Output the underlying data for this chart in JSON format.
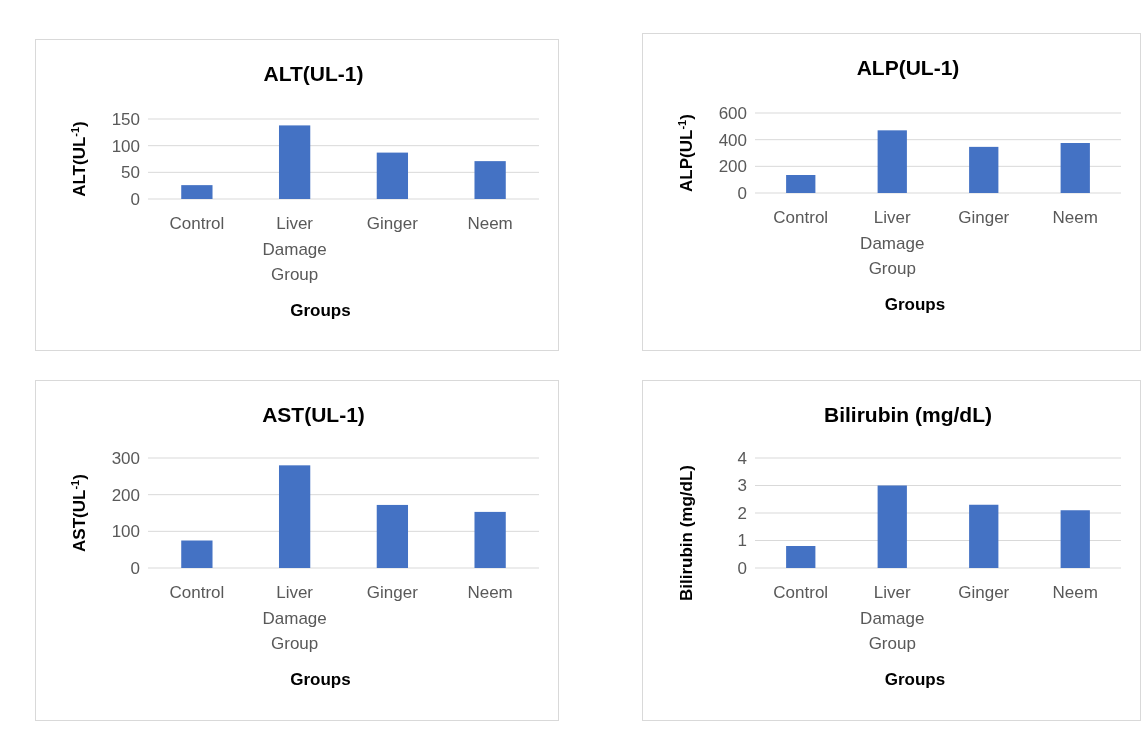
{
  "chart_data": [
    {
      "type": "bar",
      "title": "ALT(UL-1)",
      "xlabel": "Groups",
      "ylabel": "ALT(UL$^{-1}$)",
      "categories": [
        "Control",
        "Liver Damage Group",
        "Ginger",
        "Neem"
      ],
      "values": [
        26,
        138,
        87,
        71
      ],
      "color": "#4472c4",
      "ylim": [
        0,
        150
      ],
      "yticks": [
        0,
        50,
        100,
        150
      ],
      "grid": "y"
    },
    {
      "type": "bar",
      "title": "ALP(UL-1)",
      "xlabel": "Groups",
      "ylabel": "ALP(UL$^{-1}$)",
      "categories": [
        "Control",
        "Liver Damage Group",
        "Ginger",
        "Neem"
      ],
      "values": [
        135,
        470,
        346,
        375
      ],
      "color": "#4472c4",
      "ylim": [
        0,
        600
      ],
      "yticks": [
        0,
        200,
        400,
        600
      ],
      "grid": "y"
    },
    {
      "type": "bar",
      "title": "AST(UL-1)",
      "xlabel": "Groups",
      "ylabel": "AST(UL$^{-1}$)",
      "categories": [
        "Control",
        "Liver Damage Group",
        "Ginger",
        "Neem"
      ],
      "values": [
        75,
        280,
        172,
        153
      ],
      "color": "#4472c4",
      "ylim": [
        0,
        300
      ],
      "yticks": [
        0,
        100,
        200,
        300
      ],
      "grid": "y"
    },
    {
      "type": "bar",
      "title": "Bilirubin (mg/dL)",
      "xlabel": "Groups",
      "ylabel": "Bilirubin (mg/dL)",
      "categories": [
        "Control",
        "Liver Damage Group",
        "Ginger",
        "Neem"
      ],
      "values": [
        0.8,
        3.0,
        2.3,
        2.1
      ],
      "color": "#4472c4",
      "ylim": [
        0,
        4
      ],
      "yticks": [
        0,
        1,
        2,
        3,
        4
      ],
      "grid": "y"
    }
  ]
}
